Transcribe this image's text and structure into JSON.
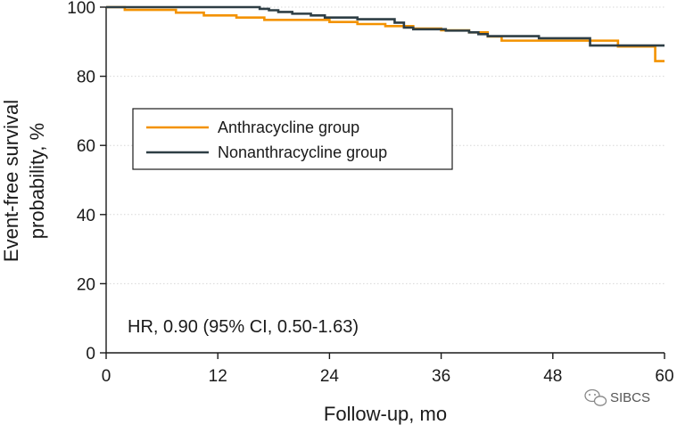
{
  "chart_data": {
    "type": "line",
    "title": "",
    "xlabel": "Follow-up, mo",
    "ylabel_lines": [
      "Event-free survival",
      "probability, %"
    ],
    "xlim": [
      0,
      60
    ],
    "ylim": [
      0,
      100
    ],
    "xticks": [
      0,
      12,
      24,
      36,
      48,
      60
    ],
    "yticks": [
      0,
      20,
      40,
      60,
      80,
      100
    ],
    "grid": "horizontal dotted",
    "legend_position": "upper-left, inside plot",
    "step": true,
    "series": [
      {
        "name": "Anthracycline group",
        "color": "#f39200",
        "points": [
          [
            0,
            100
          ],
          [
            2,
            99.2
          ],
          [
            4.5,
            99.2
          ],
          [
            7.5,
            98.4
          ],
          [
            10.5,
            97.6
          ],
          [
            14,
            97
          ],
          [
            17,
            96.3
          ],
          [
            22,
            96.3
          ],
          [
            24,
            95.7
          ],
          [
            27,
            95.1
          ],
          [
            30,
            94.5
          ],
          [
            31,
            94.5
          ],
          [
            33,
            93.8
          ],
          [
            36,
            93.3
          ],
          [
            39,
            92.7
          ],
          [
            41,
            91.5
          ],
          [
            42.5,
            90.3
          ],
          [
            55,
            90.3
          ],
          [
            55,
            88.6
          ],
          [
            59,
            88.6
          ],
          [
            59,
            84.4
          ],
          [
            60,
            84.4
          ]
        ]
      },
      {
        "name": "Nonanthracycline group",
        "color": "#2e3e45",
        "points": [
          [
            0,
            100
          ],
          [
            15.5,
            100
          ],
          [
            16.5,
            99.5
          ],
          [
            17.5,
            99.1
          ],
          [
            18.5,
            98.6
          ],
          [
            20,
            98.1
          ],
          [
            22,
            97.6
          ],
          [
            23.5,
            97
          ],
          [
            27,
            96.5
          ],
          [
            31,
            95.5
          ],
          [
            32,
            94.1
          ],
          [
            33,
            93.6
          ],
          [
            35,
            93.6
          ],
          [
            36.5,
            93.2
          ],
          [
            39,
            92.7
          ],
          [
            40,
            92.2
          ],
          [
            41,
            91.6
          ],
          [
            46,
            91.6
          ],
          [
            46.5,
            91
          ],
          [
            52,
            91
          ],
          [
            52,
            88.9
          ],
          [
            60,
            88.9
          ]
        ]
      }
    ],
    "annotations": [
      "HR, 0.90 (95% CI, 0.50-1.63)"
    ]
  },
  "legend": {
    "items": [
      "Anthracycline group",
      "Nonanthracycline group"
    ]
  },
  "annotation": {
    "hr_text": "HR, 0.90 (95% CI, 0.50-1.63)"
  },
  "watermark": {
    "text": "SIBCS",
    "icon": "wechat-icon"
  }
}
